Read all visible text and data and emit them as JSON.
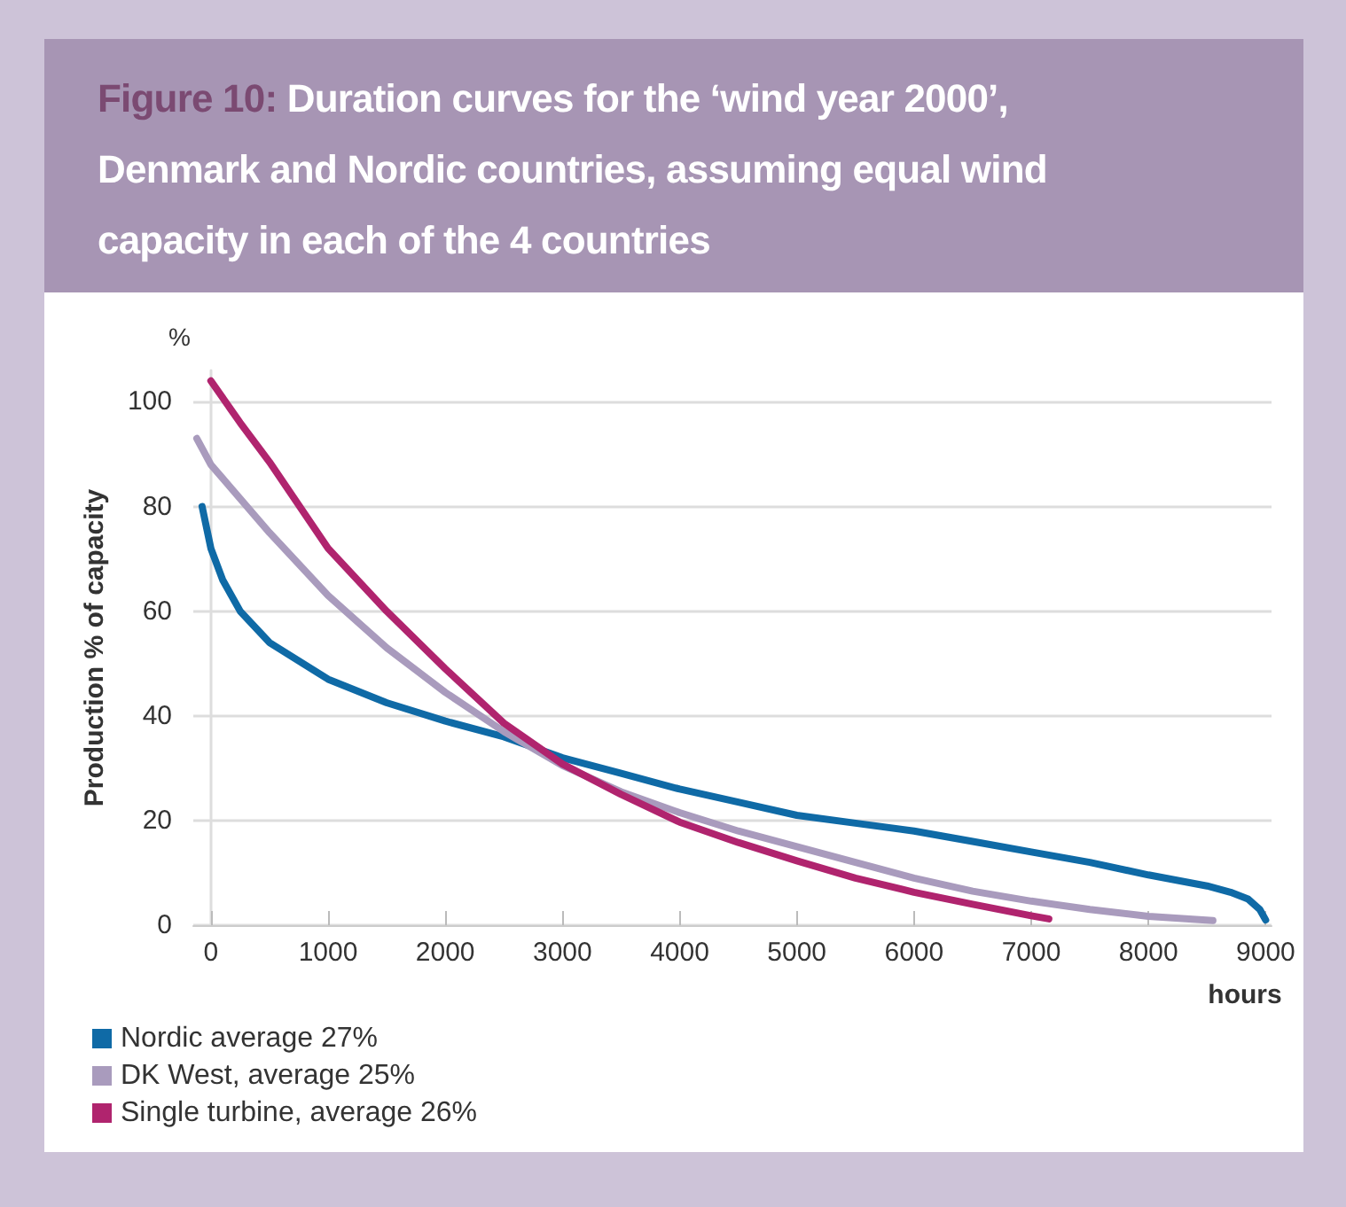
{
  "chart_data": {
    "type": "line",
    "title": "Figure 10: Duration curves for the ‘wind year 2000’, Denmark and Nordic countries, assuming equal wind capacity in each of the 4 countries",
    "xlabel": "hours",
    "ylabel": "Production % of capacity",
    "annotations": [
      "%"
    ],
    "xlim": [
      -150,
      9050
    ],
    "xticks": [
      0,
      1000,
      2000,
      3000,
      4000,
      5000,
      6000,
      7000,
      8000,
      9000
    ],
    "ylim": [
      0,
      106
    ],
    "yticks": [
      0,
      20,
      40,
      60,
      80,
      100
    ],
    "grid": "y",
    "legend": "bottom left",
    "marker": "none",
    "line_style": "solid",
    "series": [
      {
        "name": "Nordic average 27%",
        "color": "#0f6aa6",
        "x": [
          -75,
          0,
          100,
          250,
          500,
          1000,
          1500,
          2000,
          2500,
          3000,
          3500,
          4000,
          4500,
          5000,
          5500,
          6000,
          6500,
          7000,
          7500,
          8000,
          8500,
          8700,
          8850,
          8950,
          9000
        ],
        "values": [
          80,
          72,
          66,
          60,
          54,
          47,
          42.5,
          39,
          36,
          32,
          29,
          26,
          23.5,
          21,
          19.5,
          18,
          16,
          14,
          12,
          9.6,
          7.5,
          6.3,
          5,
          3,
          1
        ]
      },
      {
        "name": "DK West, average 25%",
        "color": "#a99bbd",
        "x": [
          -120,
          0,
          500,
          1000,
          1500,
          2000,
          2500,
          3000,
          3500,
          4000,
          4500,
          5000,
          5500,
          6000,
          6500,
          7000,
          7500,
          8000,
          8550
        ],
        "values": [
          93,
          88,
          75,
          63,
          53,
          44.5,
          37,
          30.5,
          25.5,
          21.5,
          18,
          15,
          12,
          9,
          6.5,
          4.6,
          3,
          1.7,
          0.9
        ]
      },
      {
        "name": "Single turbine, average 26%",
        "color": "#b0246e",
        "x": [
          0,
          250,
          500,
          1000,
          1500,
          2000,
          2500,
          3000,
          3500,
          4000,
          4500,
          5000,
          5500,
          6000,
          6500,
          7000,
          7150
        ],
        "values": [
          104,
          96,
          88.5,
          72,
          60,
          49,
          38.6,
          30.8,
          25,
          19.7,
          15.8,
          12.3,
          9,
          6.3,
          4,
          1.8,
          1.2
        ]
      }
    ]
  }
}
